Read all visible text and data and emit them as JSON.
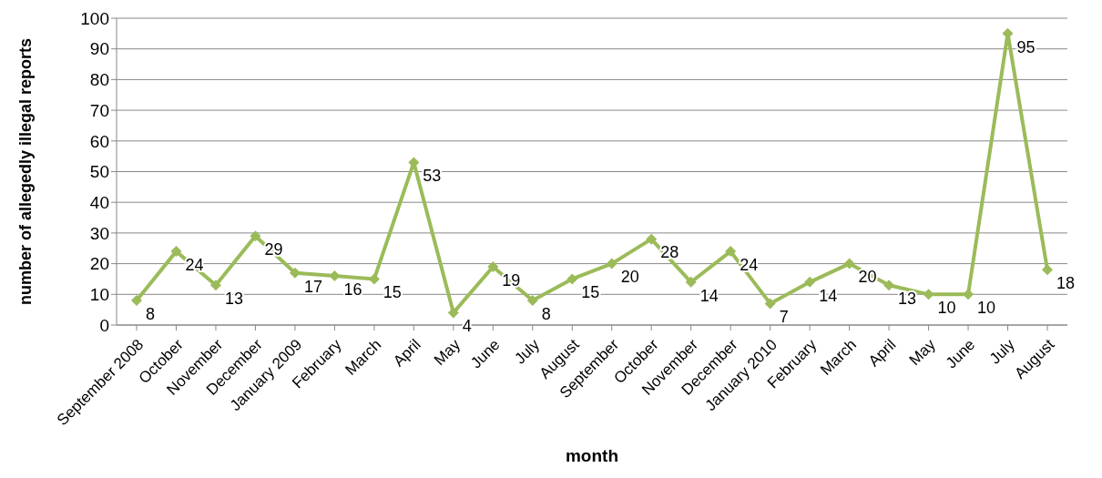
{
  "chart_data": {
    "type": "line",
    "xlabel": "month",
    "ylabel": "number of allegedly illegal reports",
    "categories": [
      "September 2008",
      "October",
      "November",
      "December",
      "January 2009",
      "February",
      "March",
      "April",
      "May",
      "June",
      "July",
      "August",
      "September",
      "October",
      "November",
      "December",
      "January 2010",
      "February",
      "March",
      "April",
      "May",
      "June",
      "July",
      "August"
    ],
    "series": [
      {
        "color": "#9bbb59",
        "values": [
          8,
          24,
          13,
          29,
          17,
          16,
          15,
          53,
          4,
          19,
          8,
          15,
          20,
          28,
          14,
          24,
          7,
          14,
          20,
          13,
          10,
          10,
          95,
          18
        ]
      }
    ],
    "ylim": [
      0,
      100
    ],
    "yticks": [
      0,
      10,
      20,
      30,
      40,
      50,
      60,
      70,
      80,
      90,
      100
    ],
    "grid": "y",
    "marker": "diamond",
    "data_labels": true
  }
}
